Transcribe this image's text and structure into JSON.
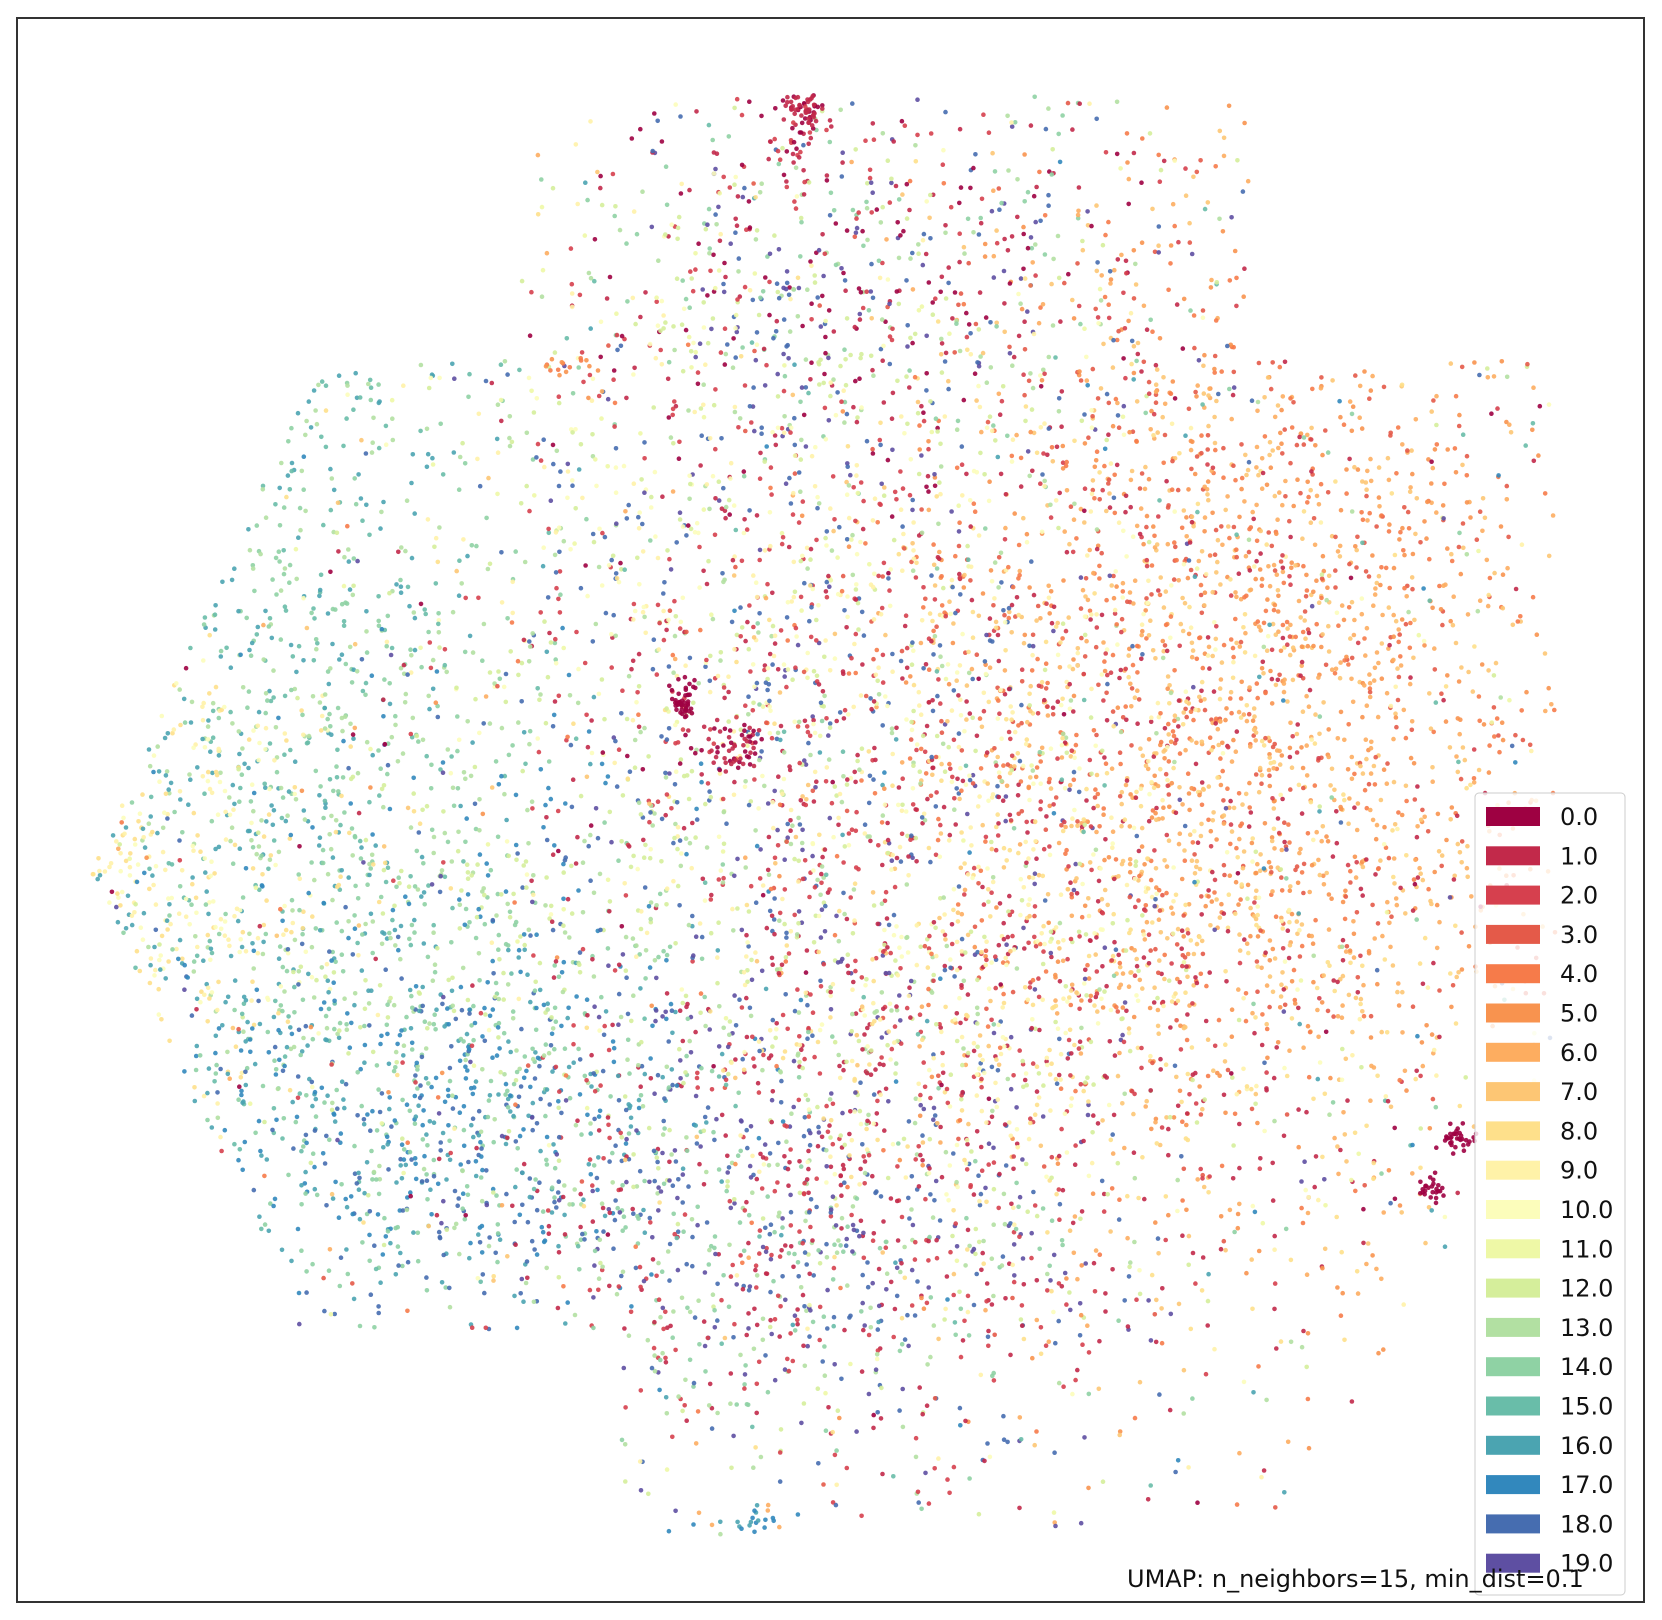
{
  "chart_data": {
    "type": "scatter",
    "title": "",
    "xlabel": "",
    "ylabel": "",
    "axes_visible": false,
    "grid": false,
    "annotation": "UMAP: n_neighbors=15, min_dist=0.1",
    "legend": {
      "placement": "right",
      "labels": [
        "0.0",
        "1.0",
        "2.0",
        "3.0",
        "4.0",
        "5.0",
        "6.0",
        "7.0",
        "8.0",
        "9.0",
        "10.0",
        "11.0",
        "12.0",
        "13.0",
        "14.0",
        "15.0",
        "16.0",
        "17.0",
        "18.0",
        "19.0"
      ]
    },
    "colors": [
      "#9e0142",
      "#c2294a",
      "#d6404e",
      "#e45a49",
      "#f67b4a",
      "#f8934f",
      "#fdad60",
      "#fdc674",
      "#fee08b",
      "#fff2a8",
      "#fcfdbb",
      "#eef8a6",
      "#d5ee9b",
      "#b2e0a2",
      "#8fd2a4",
      "#69bda9",
      "#4ba4b1",
      "#3288bd",
      "#466db0",
      "#5e4fa2"
    ],
    "point_summary": "Roughly 10,000 points; x and y ranges are unlabeled (no axes shown)."
  }
}
